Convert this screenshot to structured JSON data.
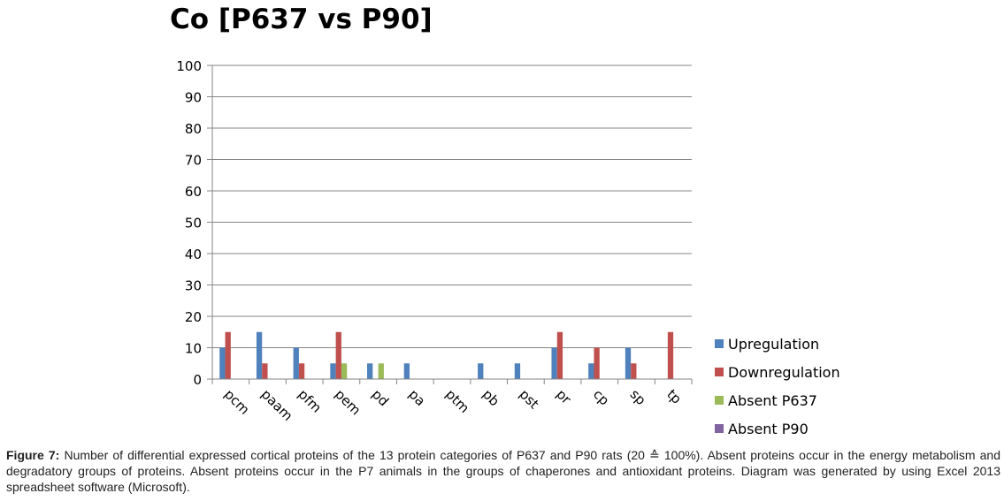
{
  "figure": {
    "caption_label": "Figure 7:",
    "caption_text": "Number of differential expressed cortical proteins of the 13 protein categories of P637 and P90 rats (20 ≙ 100%). Absent proteins occur in the energy metabolism and degradatory groups of proteins. Absent proteins occur in the P7 animals in the groups of chaperones and antioxidant proteins. Diagram was generated by using Excel 2013 spreadsheet software (Microsoft)."
  },
  "chart_data": {
    "type": "bar",
    "title": "Co [P637 vs P90]",
    "xlabel": "",
    "ylabel": "",
    "ylim": [
      0,
      100
    ],
    "yticks": [
      0,
      10,
      20,
      30,
      40,
      50,
      60,
      70,
      80,
      90,
      100
    ],
    "grid": true,
    "legend_position": "right",
    "categories": [
      "pcm",
      "paam",
      "pfm",
      "pem",
      "pd",
      "pa",
      "ptm",
      "pb",
      "pst",
      "pr",
      "cp",
      "sp",
      "tp"
    ],
    "series": [
      {
        "name": "Upregulation",
        "color": "#4F81BD",
        "values": [
          10,
          15,
          10,
          5,
          5,
          5,
          0,
          5,
          5,
          10,
          5,
          10,
          0
        ]
      },
      {
        "name": "Downregulation",
        "color": "#C0504D",
        "values": [
          15,
          5,
          5,
          15,
          0,
          0,
          0,
          0,
          0,
          15,
          10,
          5,
          15
        ]
      },
      {
        "name": "Absent P637",
        "color": "#9BBB59",
        "values": [
          0,
          0,
          0,
          5,
          5,
          0,
          0,
          0,
          0,
          0,
          0,
          0,
          0
        ]
      },
      {
        "name": "Absent P90",
        "color": "#8064A2",
        "values": [
          0,
          0,
          0,
          0,
          0,
          0,
          0,
          0,
          0,
          0,
          0,
          0,
          0
        ]
      }
    ]
  }
}
